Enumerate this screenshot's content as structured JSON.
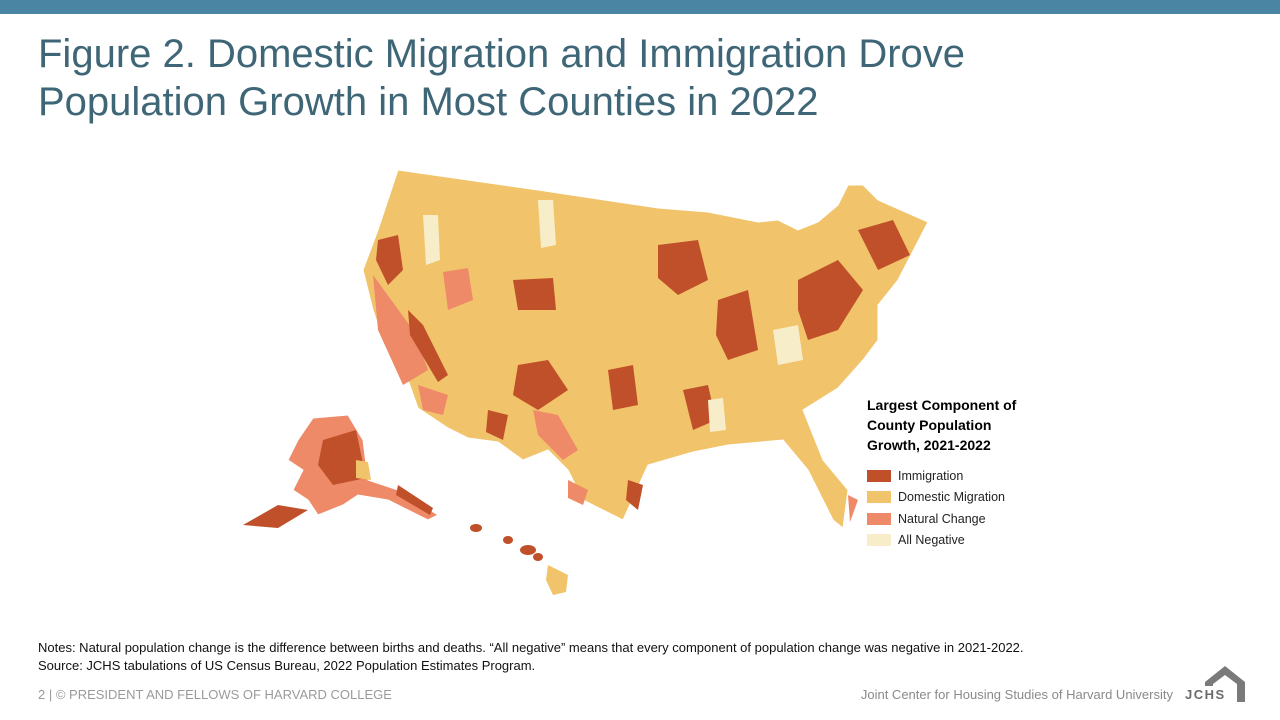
{
  "title_line1": "Figure 2. Domestic Migration and Immigration Drove",
  "title_line2": "Population Growth in Most Counties in 2022",
  "legend": {
    "title_line1": "Largest Component of",
    "title_line2": "County Population",
    "title_line3": "Growth, 2021-2022",
    "items": [
      {
        "label": "Immigration",
        "color": "#c0502a"
      },
      {
        "label": "Domestic Migration",
        "color": "#f1c36a"
      },
      {
        "label": "Natural Change",
        "color": "#ef8a68"
      },
      {
        "label": "All Negative",
        "color": "#f8edc9"
      }
    ]
  },
  "notes": {
    "line1": "Notes: Natural population change is the difference between births and deaths. “All negative” means that every component of population change was negative in 2021-2022.",
    "line2": "Source: JCHS tabulations of US Census Bureau, 2022 Population Estimates Program."
  },
  "footer": {
    "left": "2 | © PRESIDENT AND FELLOWS OF HARVARD COLLEGE",
    "right": "Joint Center for Housing Studies of Harvard University",
    "logo_text": "JCHS"
  },
  "colors": {
    "header_bar": "#4a86a4",
    "title": "#3e6677",
    "immigration": "#c0502a",
    "domestic": "#f1c36a",
    "natural": "#ef8a68",
    "negative": "#f8edc9"
  }
}
